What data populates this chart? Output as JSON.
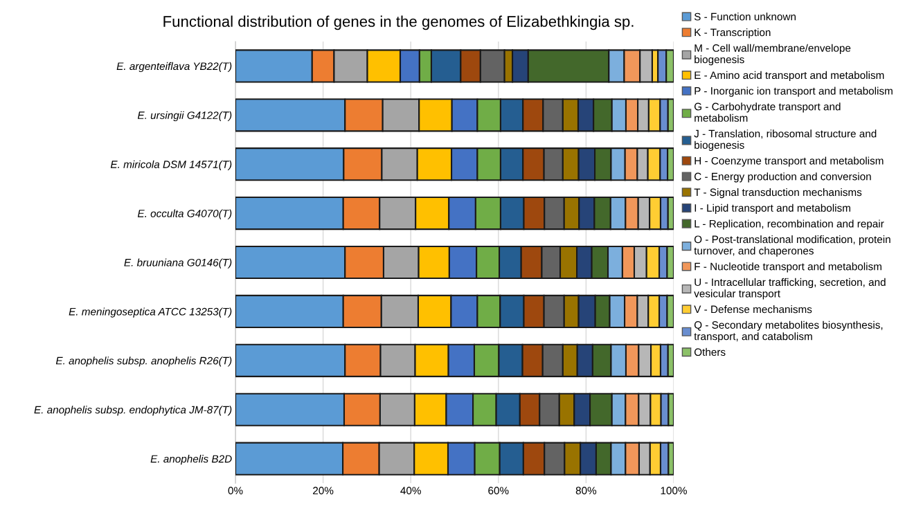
{
  "chart_data": {
    "type": "bar",
    "orientation": "horizontal",
    "stacked": true,
    "title": "Functional distribution of genes in the genomes of Elizabethkingia sp.",
    "categories": [
      "E. argenteiflava YB22(T)",
      "E. ursingii G4122(T)",
      "E. miricola DSM 14571(T)",
      "E. occulta G4070(T)",
      "E. bruuniana G0146(T)",
      "E. meningoseptica ATCC 13253(T)",
      "E. anophelis subsp. anophelis R26(T)",
      "E. anophelis subsp. endophytica JM-87(T)",
      "E. anophelis B2D"
    ],
    "series": [
      {
        "name": "S - Function unknown",
        "color": "#5b9bd5",
        "values": [
          17.5,
          25.0,
          24.7,
          24.6,
          25.0,
          24.6,
          25.0,
          24.8,
          24.5
        ]
      },
      {
        "name": "K - Transcription",
        "color": "#ed7d31",
        "values": [
          5.0,
          8.6,
          8.7,
          8.3,
          8.8,
          8.7,
          8.1,
          8.2,
          8.3
        ]
      },
      {
        "name": "M - Cell wall/membrane/envelope\nbiogenesis",
        "color": "#a5a5a5",
        "values": [
          7.6,
          8.3,
          8.1,
          8.2,
          8.0,
          8.4,
          7.9,
          7.9,
          8.0
        ]
      },
      {
        "name": "E - Amino acid transport and metabolism",
        "color": "#ffc000",
        "values": [
          7.5,
          7.5,
          7.8,
          7.6,
          7.0,
          7.5,
          7.6,
          7.2,
          7.7
        ]
      },
      {
        "name": "P - Inorganic ion transport and metabolism",
        "color": "#4472c4",
        "values": [
          4.4,
          5.8,
          5.9,
          6.1,
          6.2,
          6.0,
          5.9,
          6.1,
          6.1
        ]
      },
      {
        "name": "G - Carbohydrate transport and\nmetabolism",
        "color": "#70ad47",
        "values": [
          2.7,
          5.3,
          5.3,
          5.7,
          5.2,
          5.2,
          5.6,
          5.3,
          5.7
        ]
      },
      {
        "name": "J - Translation, ribosomal structure and\nbiogenesis",
        "color": "#255e91",
        "values": [
          6.7,
          5.1,
          5.1,
          5.3,
          5.0,
          5.4,
          5.4,
          5.4,
          5.4
        ]
      },
      {
        "name": "H - Coenzyme transport and metabolism",
        "color": "#9e480e",
        "values": [
          4.5,
          4.6,
          4.8,
          4.7,
          4.7,
          4.6,
          4.6,
          4.5,
          4.8
        ]
      },
      {
        "name": "C - Energy production and conversion",
        "color": "#636363",
        "values": [
          5.5,
          4.5,
          4.3,
          4.5,
          4.2,
          4.6,
          4.6,
          4.5,
          4.6
        ]
      },
      {
        "name": "T - Signal transduction mechanisms",
        "color": "#997300",
        "values": [
          1.8,
          3.5,
          3.6,
          3.4,
          3.8,
          3.3,
          3.3,
          3.4,
          3.6
        ]
      },
      {
        "name": "I - Lipid transport and metabolism",
        "color": "#264478",
        "values": [
          3.6,
          3.5,
          3.7,
          3.5,
          3.4,
          3.8,
          3.5,
          3.6,
          3.6
        ]
      },
      {
        "name": "L - Replication, recombination and repair",
        "color": "#43682b",
        "values": [
          18.4,
          4.2,
          3.7,
          3.7,
          3.7,
          3.3,
          4.2,
          5.0,
          3.4
        ]
      },
      {
        "name": "O - Post-translational modification, protein\nturnover, and chaperones",
        "color": "#7cafdd",
        "values": [
          3.5,
          3.2,
          3.2,
          3.4,
          3.3,
          3.4,
          3.4,
          3.1,
          3.3
        ]
      },
      {
        "name": "F - Nucleotide transport and metabolism",
        "color": "#f1975a",
        "values": [
          3.6,
          2.7,
          2.8,
          2.9,
          2.7,
          2.9,
          2.9,
          3.0,
          3.1
        ]
      },
      {
        "name": "U - Intracellular trafficking, secretion, and\nvesicular transport",
        "color": "#b7b7b7",
        "values": [
          2.8,
          2.5,
          2.4,
          2.6,
          2.8,
          2.5,
          2.8,
          2.7,
          2.5
        ]
      },
      {
        "name": "V - Defense mechanisms",
        "color": "#ffcd33",
        "values": [
          1.3,
          2.6,
          2.8,
          2.5,
          2.9,
          2.5,
          2.2,
          2.4,
          2.4
        ]
      },
      {
        "name": "Q - Secondary metabolites biosynthesis,\ntransport, and catabolism",
        "color": "#698ed0",
        "values": [
          1.9,
          1.8,
          1.7,
          1.7,
          1.8,
          1.8,
          1.7,
          1.7,
          1.8
        ]
      },
      {
        "name": "Others",
        "color": "#8cc168",
        "values": [
          1.7,
          1.3,
          1.4,
          1.3,
          1.5,
          1.5,
          1.3,
          1.2,
          1.2
        ]
      }
    ],
    "xlim": [
      0,
      100
    ],
    "xticks": [
      {
        "value": 0,
        "label": "0%"
      },
      {
        "value": 20,
        "label": "20%"
      },
      {
        "value": 40,
        "label": "40%"
      },
      {
        "value": 60,
        "label": "60%"
      },
      {
        "value": 80,
        "label": "80%"
      },
      {
        "value": 100,
        "label": "100%"
      }
    ],
    "grid": "x",
    "legend": "right"
  }
}
